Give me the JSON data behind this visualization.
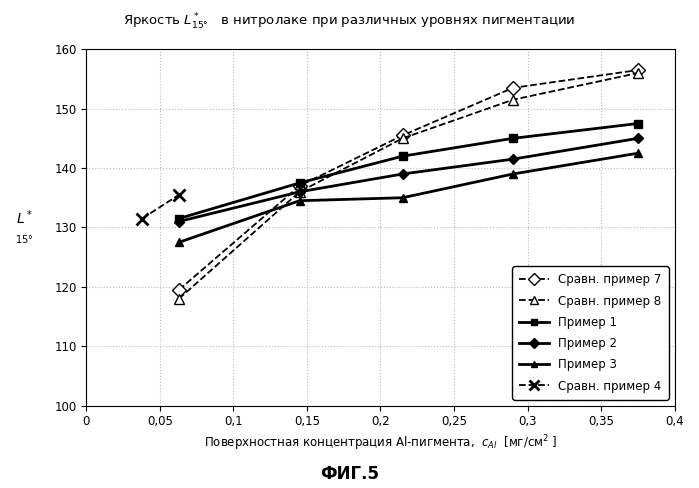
{
  "caption": "ФИГ.5",
  "xlim": [
    0,
    0.4
  ],
  "ylim": [
    100,
    160
  ],
  "xticks": [
    0,
    0.05,
    0.1,
    0.15,
    0.2,
    0.25,
    0.3,
    0.35,
    0.4
  ],
  "yticks": [
    100,
    110,
    120,
    130,
    140,
    150,
    160
  ],
  "series": {
    "sravnenie7": {
      "label": "Сравн. пример 7",
      "x": [
        0.063,
        0.145,
        0.215,
        0.29,
        0.375
      ],
      "y": [
        119.5,
        137.0,
        145.5,
        153.5,
        156.5
      ],
      "linestyle": "--",
      "marker": "D",
      "marker_filled": false,
      "linewidth": 1.3,
      "markersize": 7
    },
    "sravnenie8": {
      "label": "Сравн. пример 8",
      "x": [
        0.063,
        0.145,
        0.215,
        0.29,
        0.375
      ],
      "y": [
        118.0,
        136.0,
        145.0,
        151.5,
        156.0
      ],
      "linestyle": "--",
      "marker": "^",
      "marker_filled": false,
      "linewidth": 1.3,
      "markersize": 7
    },
    "primer1": {
      "label": "Пример 1",
      "x": [
        0.063,
        0.145,
        0.215,
        0.29,
        0.375
      ],
      "y": [
        131.5,
        137.5,
        142.0,
        145.0,
        147.5
      ],
      "linestyle": "-",
      "marker": "s",
      "marker_filled": true,
      "linewidth": 2.0,
      "markersize": 6
    },
    "primer2": {
      "label": "Пример 2",
      "x": [
        0.063,
        0.145,
        0.215,
        0.29,
        0.375
      ],
      "y": [
        131.0,
        136.0,
        139.0,
        141.5,
        145.0
      ],
      "linestyle": "-",
      "marker": "D",
      "marker_filled": true,
      "linewidth": 2.0,
      "markersize": 5
    },
    "primer3": {
      "label": "Пример 3",
      "x": [
        0.063,
        0.145,
        0.215,
        0.29,
        0.375
      ],
      "y": [
        127.5,
        134.5,
        135.0,
        139.0,
        142.5
      ],
      "linestyle": "-",
      "marker": "^",
      "marker_filled": true,
      "linewidth": 2.0,
      "markersize": 6
    },
    "sravnenie4": {
      "label": "Сравн. пример 4",
      "x": [
        0.038,
        0.063
      ],
      "y": [
        131.5,
        135.5
      ],
      "linestyle": "--",
      "marker": "x",
      "marker_filled": false,
      "linewidth": 1.3,
      "markersize": 9
    }
  },
  "background_color": "#ffffff",
  "grid_color": "#bbbbbb",
  "legend_fontsize": 8.5,
  "axis_fontsize": 8.5,
  "title_fontsize": 9.5
}
